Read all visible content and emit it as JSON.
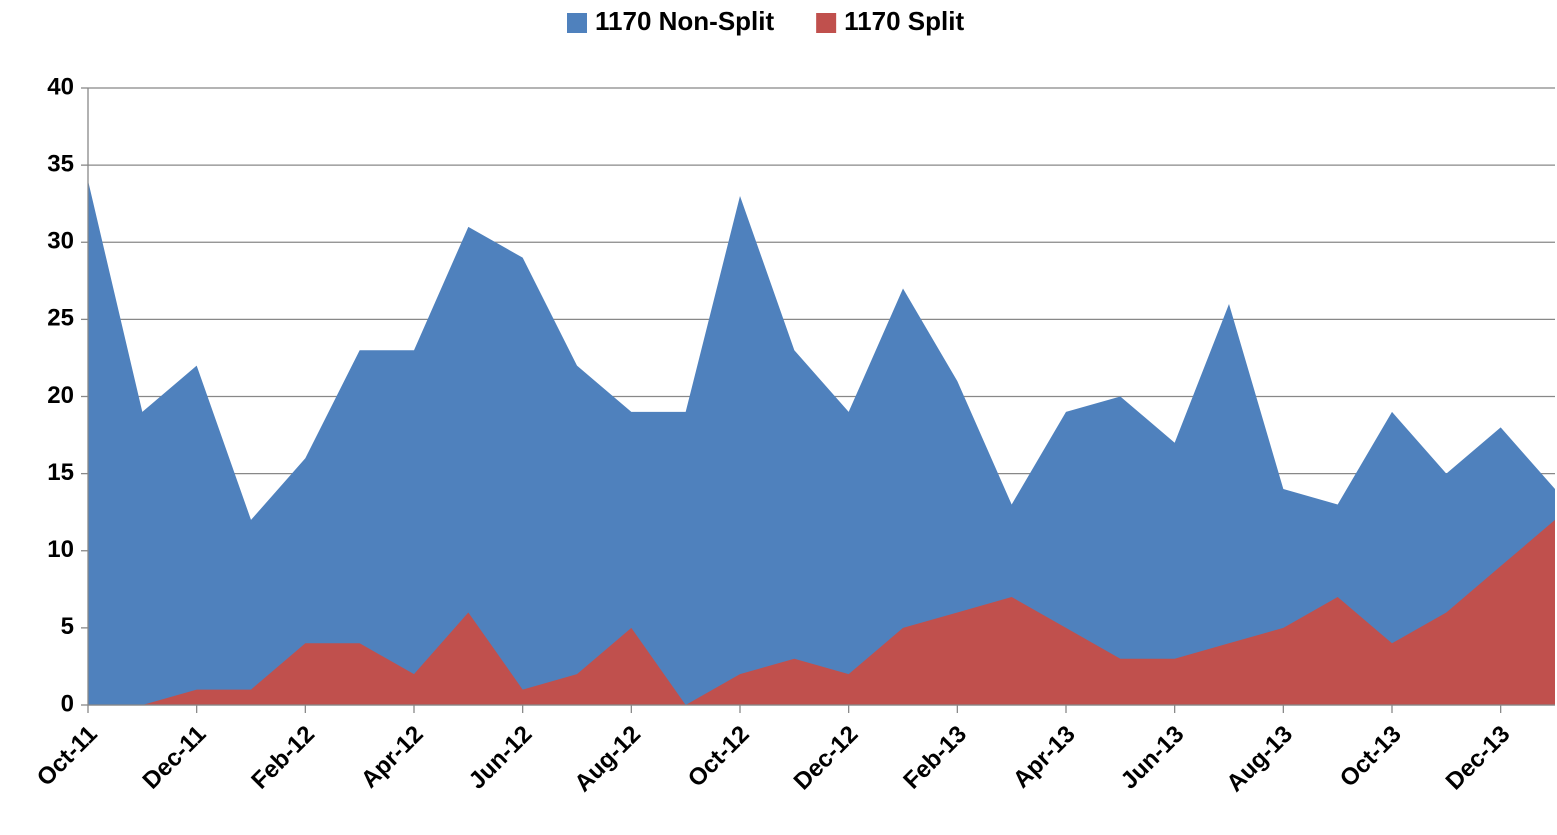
{
  "chart_data": {
    "type": "area",
    "categories": [
      "Oct-11",
      null,
      "Dec-11",
      null,
      "Feb-12",
      null,
      "Apr-12",
      null,
      "Jun-12",
      null,
      "Aug-12",
      null,
      "Oct-12",
      null,
      "Dec-12",
      null,
      "Feb-13",
      null,
      "Apr-13",
      null,
      "Jun-13",
      null,
      "Aug-13",
      null,
      "Oct-13",
      null,
      "Dec-13",
      null
    ],
    "series": [
      {
        "name": "1170 Non-Split",
        "color": "#4f81bd",
        "values": [
          34,
          19,
          22,
          12,
          16,
          23,
          23,
          31,
          29,
          22,
          19,
          19,
          33,
          23,
          19,
          27,
          21,
          13,
          19,
          20,
          17,
          26,
          14,
          13,
          19,
          15,
          18,
          14
        ]
      },
      {
        "name": "1170 Split",
        "color": "#c0504d",
        "values": [
          0,
          0,
          1,
          1,
          4,
          4,
          2,
          6,
          1,
          2,
          5,
          0,
          2,
          3,
          2,
          5,
          6,
          7,
          5,
          3,
          3,
          4,
          5,
          7,
          4,
          6,
          9,
          12
        ]
      }
    ],
    "ylim": [
      0,
      40
    ],
    "yticks": [
      0,
      5,
      10,
      15,
      20,
      25,
      30,
      35,
      40
    ],
    "grid": true,
    "legend": "top"
  }
}
